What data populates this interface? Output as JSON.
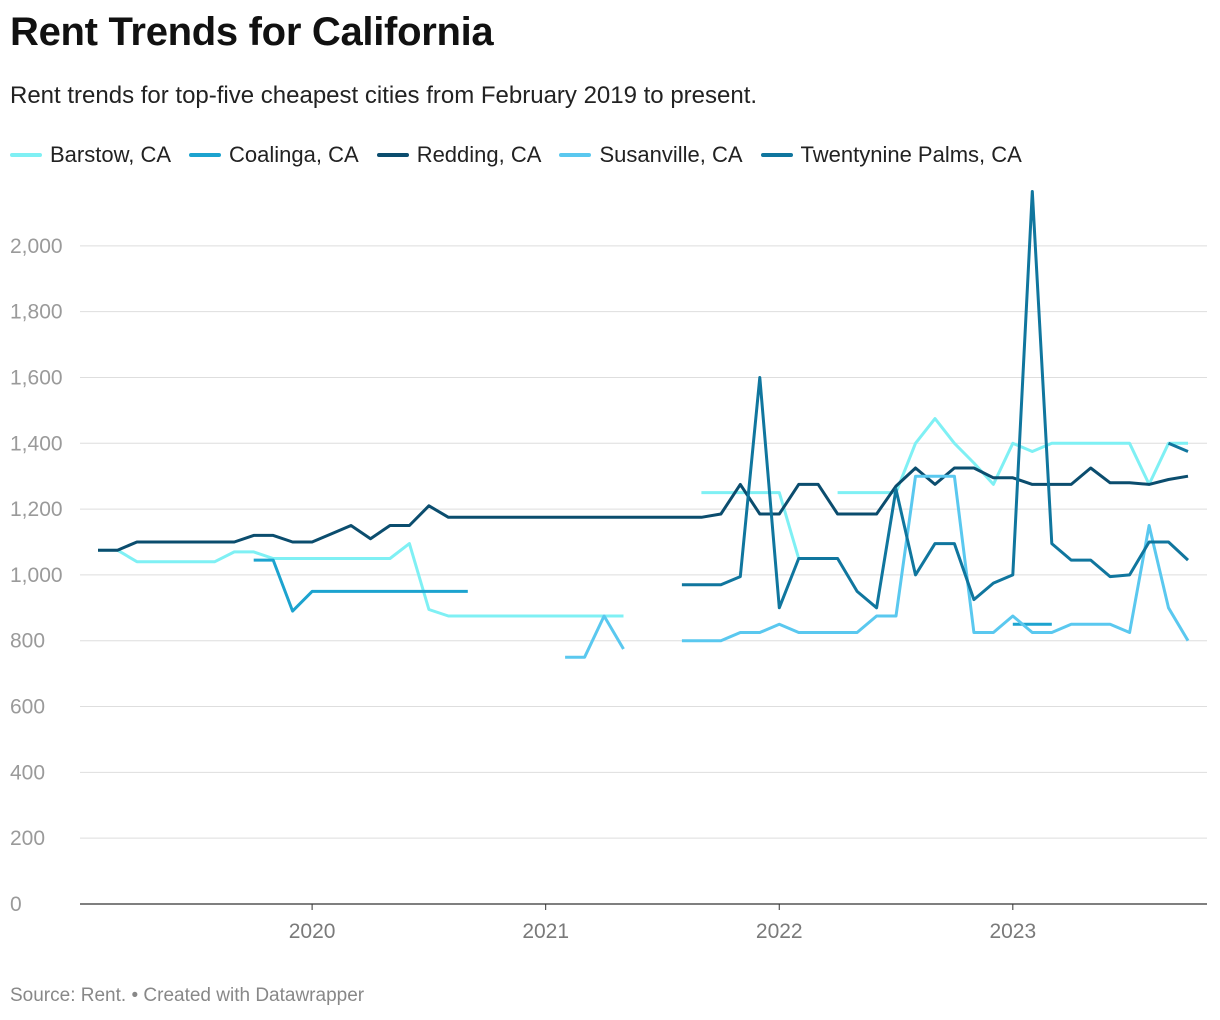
{
  "header": {
    "title": "Rent Trends for California",
    "subtitle": "Rent trends for top-five cheapest cities from February 2019 to present."
  },
  "footer": {
    "source_label": "Source: Rent.",
    "separator": "•",
    "credit": "Created with Datawrapper"
  },
  "chart_data": {
    "type": "line",
    "title": "Rent Trends for California",
    "subtitle": "Rent trends for top-five cheapest cities from February 2019 to present.",
    "xlabel": "",
    "ylabel": "",
    "x_type": "date",
    "x_range": [
      "2019-02",
      "2023-10"
    ],
    "ylim": [
      0,
      2200
    ],
    "y_ticks": [
      0,
      200,
      400,
      600,
      800,
      1000,
      1200,
      1400,
      1600,
      1800,
      2000
    ],
    "y_tick_labels": [
      "0",
      "200",
      "400",
      "600",
      "800",
      "1,000",
      "1,200",
      "1,400",
      "1,600",
      "1,800",
      "2,000"
    ],
    "x_ticks": [
      "2020-01",
      "2021-01",
      "2022-01",
      "2023-01"
    ],
    "x_tick_labels": [
      "2020",
      "2021",
      "2022",
      "2023"
    ],
    "grid": "horizontal",
    "legend_position": "top-left",
    "series": [
      {
        "name": "Barstow, CA",
        "color": "#7ff0f4",
        "points": [
          [
            "2019-02",
            1075
          ],
          [
            "2019-03",
            1075
          ],
          [
            "2019-04",
            1040
          ],
          [
            "2019-05",
            1040
          ],
          [
            "2019-06",
            1040
          ],
          [
            "2019-07",
            1040
          ],
          [
            "2019-08",
            1040
          ],
          [
            "2019-09",
            1070
          ],
          [
            "2019-10",
            1070
          ],
          [
            "2019-11",
            1050
          ],
          [
            "2019-12",
            1050
          ],
          [
            "2020-01",
            1050
          ],
          [
            "2020-02",
            1050
          ],
          [
            "2020-03",
            1050
          ],
          [
            "2020-04",
            1050
          ],
          [
            "2020-05",
            1050
          ],
          [
            "2020-06",
            1095
          ],
          [
            "2020-07",
            895
          ],
          [
            "2020-08",
            875
          ],
          [
            "2020-09",
            875
          ],
          [
            "2020-10",
            875
          ],
          [
            "2020-11",
            875
          ],
          [
            "2020-12",
            875
          ],
          [
            "2021-01",
            875
          ],
          [
            "2021-02",
            875
          ],
          [
            "2021-03",
            875
          ],
          [
            "2021-04",
            875
          ],
          [
            "2021-05",
            875
          ],
          null,
          [
            "2021-09",
            1250
          ],
          [
            "2021-10",
            1250
          ],
          [
            "2021-11",
            1250
          ],
          [
            "2021-12",
            1250
          ],
          [
            "2022-01",
            1250
          ],
          [
            "2022-02",
            1050
          ],
          null,
          [
            "2022-04",
            1250
          ],
          [
            "2022-05",
            1250
          ],
          [
            "2022-06",
            1250
          ],
          [
            "2022-07",
            1250
          ],
          [
            "2022-08",
            1400
          ],
          [
            "2022-09",
            1475
          ],
          [
            "2022-10",
            1400
          ],
          [
            "2022-11",
            1340
          ],
          [
            "2022-12",
            1275
          ],
          [
            "2023-01",
            1400
          ],
          [
            "2023-02",
            1375
          ],
          [
            "2023-03",
            1400
          ],
          [
            "2023-04",
            1400
          ],
          [
            "2023-05",
            1400
          ],
          [
            "2023-06",
            1400
          ],
          [
            "2023-07",
            1400
          ],
          [
            "2023-08",
            1275
          ],
          [
            "2023-09",
            1400
          ],
          [
            "2023-10",
            1400
          ]
        ]
      },
      {
        "name": "Coalinga, CA",
        "color": "#1ca3cf",
        "points": [
          [
            "2019-10",
            1045
          ],
          [
            "2019-11",
            1045
          ],
          [
            "2019-12",
            890
          ],
          [
            "2020-01",
            950
          ],
          [
            "2020-02",
            950
          ],
          [
            "2020-03",
            950
          ],
          [
            "2020-04",
            950
          ],
          [
            "2020-05",
            950
          ],
          [
            "2020-06",
            950
          ],
          [
            "2020-07",
            950
          ],
          [
            "2020-08",
            950
          ],
          [
            "2020-09",
            950
          ],
          null,
          [
            "2023-01",
            850
          ],
          [
            "2023-02",
            850
          ],
          [
            "2023-03",
            850
          ]
        ]
      },
      {
        "name": "Redding, CA",
        "color": "#0b4d6e",
        "points": [
          [
            "2019-02",
            1075
          ],
          [
            "2019-03",
            1075
          ],
          [
            "2019-04",
            1100
          ],
          [
            "2019-05",
            1100
          ],
          [
            "2019-06",
            1100
          ],
          [
            "2019-07",
            1100
          ],
          [
            "2019-08",
            1100
          ],
          [
            "2019-09",
            1100
          ],
          [
            "2019-10",
            1120
          ],
          [
            "2019-11",
            1120
          ],
          [
            "2019-12",
            1100
          ],
          [
            "2020-01",
            1100
          ],
          [
            "2020-02",
            1125
          ],
          [
            "2020-03",
            1150
          ],
          [
            "2020-04",
            1110
          ],
          [
            "2020-05",
            1150
          ],
          [
            "2020-06",
            1150
          ],
          [
            "2020-07",
            1210
          ],
          [
            "2020-08",
            1175
          ],
          [
            "2020-09",
            1175
          ],
          [
            "2020-10",
            1175
          ],
          [
            "2020-11",
            1175
          ],
          [
            "2020-12",
            1175
          ],
          [
            "2021-01",
            1175
          ],
          [
            "2021-02",
            1175
          ],
          [
            "2021-03",
            1175
          ],
          [
            "2021-04",
            1175
          ],
          [
            "2021-05",
            1175
          ],
          [
            "2021-06",
            1175
          ],
          [
            "2021-07",
            1175
          ],
          [
            "2021-08",
            1175
          ],
          [
            "2021-09",
            1175
          ],
          [
            "2021-10",
            1185
          ],
          [
            "2021-11",
            1275
          ],
          [
            "2021-12",
            1185
          ],
          [
            "2022-01",
            1185
          ],
          [
            "2022-02",
            1275
          ],
          [
            "2022-03",
            1275
          ],
          [
            "2022-04",
            1185
          ],
          [
            "2022-05",
            1185
          ],
          [
            "2022-06",
            1185
          ],
          [
            "2022-07",
            1270
          ],
          [
            "2022-08",
            1325
          ],
          [
            "2022-09",
            1275
          ],
          [
            "2022-10",
            1325
          ],
          [
            "2022-11",
            1325
          ],
          [
            "2022-12",
            1295
          ],
          [
            "2023-01",
            1295
          ],
          [
            "2023-02",
            1275
          ],
          [
            "2023-03",
            1275
          ],
          [
            "2023-04",
            1275
          ],
          [
            "2023-05",
            1325
          ],
          [
            "2023-06",
            1280
          ],
          [
            "2023-07",
            1280
          ],
          [
            "2023-08",
            1275
          ],
          [
            "2023-09",
            1290
          ],
          [
            "2023-10",
            1300
          ]
        ]
      },
      {
        "name": "Susanville, CA",
        "color": "#5ac8ef",
        "points": [
          [
            "2021-02",
            750
          ],
          [
            "2021-03",
            750
          ],
          [
            "2021-04",
            875
          ],
          [
            "2021-05",
            775
          ],
          null,
          [
            "2021-08",
            800
          ],
          [
            "2021-09",
            800
          ],
          [
            "2021-10",
            800
          ],
          [
            "2021-11",
            825
          ],
          [
            "2021-12",
            825
          ],
          [
            "2022-01",
            850
          ],
          [
            "2022-02",
            825
          ],
          [
            "2022-03",
            825
          ],
          [
            "2022-04",
            825
          ],
          [
            "2022-05",
            825
          ],
          [
            "2022-06",
            875
          ],
          [
            "2022-07",
            875
          ],
          [
            "2022-08",
            1300
          ],
          [
            "2022-09",
            1300
          ],
          [
            "2022-10",
            1300
          ],
          [
            "2022-11",
            825
          ],
          [
            "2022-12",
            825
          ],
          [
            "2023-01",
            875
          ],
          [
            "2023-02",
            825
          ],
          [
            "2023-03",
            825
          ],
          [
            "2023-04",
            850
          ],
          [
            "2023-05",
            850
          ],
          [
            "2023-06",
            850
          ],
          [
            "2023-07",
            825
          ],
          [
            "2023-08",
            1150
          ],
          [
            "2023-09",
            900
          ],
          [
            "2023-10",
            800
          ]
        ]
      },
      {
        "name": "Twentynine Palms, CA",
        "color": "#10769e",
        "points": [
          [
            "2021-08",
            970
          ],
          [
            "2021-09",
            970
          ],
          [
            "2021-10",
            970
          ],
          [
            "2021-11",
            995
          ],
          [
            "2021-12",
            1600
          ],
          [
            "2022-01",
            900
          ],
          [
            "2022-02",
            1050
          ],
          [
            "2022-03",
            1050
          ],
          [
            "2022-04",
            1050
          ],
          [
            "2022-05",
            950
          ],
          [
            "2022-06",
            900
          ],
          [
            "2022-07",
            1260
          ],
          [
            "2022-08",
            1000
          ],
          [
            "2022-09",
            1095
          ],
          [
            "2022-10",
            1095
          ],
          [
            "2022-11",
            925
          ],
          [
            "2022-12",
            975
          ],
          [
            "2023-01",
            1000
          ],
          [
            "2023-02",
            2165
          ],
          [
            "2023-03",
            1095
          ],
          [
            "2023-04",
            1045
          ],
          [
            "2023-05",
            1045
          ],
          [
            "2023-06",
            995
          ],
          [
            "2023-07",
            1000
          ],
          [
            "2023-08",
            1100
          ],
          [
            "2023-09",
            1100
          ],
          [
            "2023-10",
            1045
          ],
          null,
          [
            "2023-09",
            1400
          ],
          [
            "2023-10",
            1375
          ]
        ]
      }
    ]
  }
}
